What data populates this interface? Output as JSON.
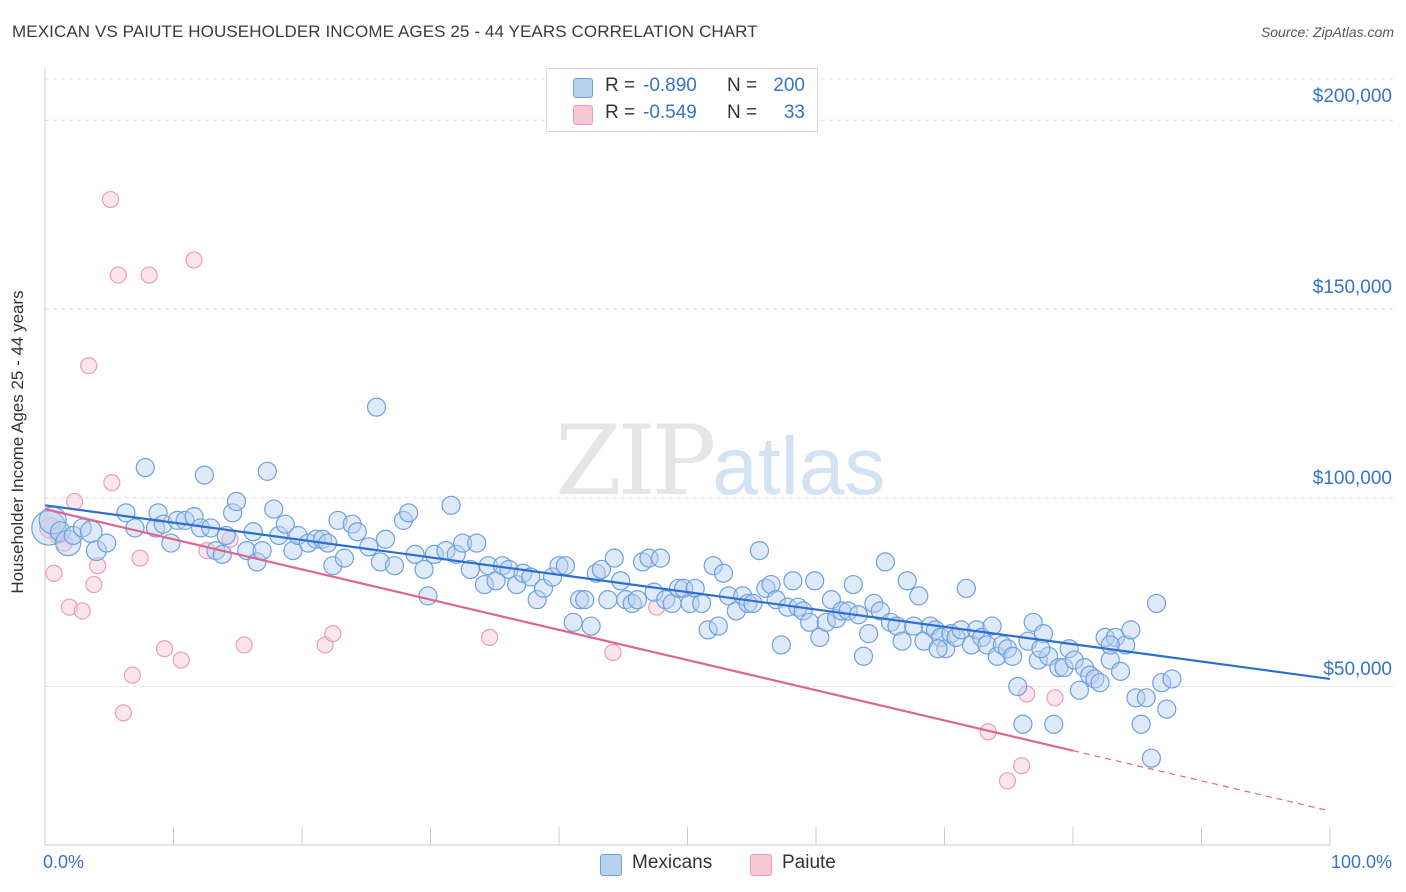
{
  "header": {
    "title": "MEXICAN VS PAIUTE HOUSEHOLDER INCOME AGES 25 - 44 YEARS CORRELATION CHART",
    "source": "Source: ZipAtlas.com"
  },
  "watermark": {
    "zip": "ZIP",
    "atlas": "atlas"
  },
  "legend": {
    "r_label": "R =",
    "n_label": "N =",
    "mexicans": {
      "r": "-0.890",
      "n": "200",
      "color": "#6fa1dd"
    },
    "paiute": {
      "r": "-0.549",
      "n": "33",
      "color": "#ef9cb7"
    }
  },
  "bottom_legend": {
    "mexicans": "Mexicans",
    "paiute": "Paiute"
  },
  "axes": {
    "ylabel": "Householder Income Ages 25 - 44 years",
    "x_min_label": "0.0%",
    "x_max_label": "100.0%",
    "y_ticks": [
      "$200,000",
      "$150,000",
      "$100,000",
      "$50,000"
    ]
  },
  "chart_data": {
    "type": "scatter",
    "title": "MEXICAN VS PAIUTE HOUSEHOLDER INCOME AGES 25 - 44 YEARS CORRELATION CHART",
    "xlabel": "",
    "ylabel": "Householder Income Ages 25 - 44 years",
    "xlim": [
      0,
      100
    ],
    "ylim": [
      8000,
      212000
    ],
    "y_ticks": [
      50000,
      100000,
      150000,
      200000
    ],
    "grid": true,
    "legend_position": "top-center",
    "series": [
      {
        "name": "Mexicans",
        "color": "#6fa1dd",
        "line_color": "#2b6fd1",
        "r": -0.89,
        "n": 200,
        "trend": {
          "x": [
            0,
            100
          ],
          "y": [
            98000,
            52000
          ]
        },
        "points": [
          [
            0.3,
            92000,
            1.9
          ],
          [
            0.6,
            94000,
            1.5
          ],
          [
            1.2,
            91000,
            1.1
          ],
          [
            1.8,
            88000,
            1.4
          ],
          [
            2.2,
            90000,
            1
          ],
          [
            2.9,
            92000,
            1
          ],
          [
            3.6,
            91000,
            1.2
          ],
          [
            4.0,
            86000,
            1.1
          ],
          [
            4.8,
            88000,
            1
          ],
          [
            6.3,
            96000,
            1
          ],
          [
            7.0,
            92000,
            1
          ],
          [
            7.8,
            108000,
            1
          ],
          [
            8.6,
            92000,
            1
          ],
          [
            8.8,
            96000,
            1
          ],
          [
            9.2,
            93000,
            1
          ],
          [
            9.8,
            88000,
            1
          ],
          [
            10.3,
            94000,
            1
          ],
          [
            10.9,
            94000,
            1
          ],
          [
            11.6,
            95000,
            1
          ],
          [
            12.1,
            92000,
            1
          ],
          [
            12.4,
            106000,
            1
          ],
          [
            12.9,
            92000,
            1
          ],
          [
            13.3,
            86000,
            1
          ],
          [
            13.8,
            85000,
            1
          ],
          [
            14.1,
            90000,
            1
          ],
          [
            14.6,
            96000,
            1
          ],
          [
            14.9,
            99000,
            1
          ],
          [
            15.7,
            86000,
            1
          ],
          [
            16.2,
            91000,
            1
          ],
          [
            16.5,
            83000,
            1
          ],
          [
            16.9,
            86000,
            1
          ],
          [
            17.3,
            107000,
            1
          ],
          [
            17.8,
            97000,
            1
          ],
          [
            18.2,
            90000,
            1
          ],
          [
            18.7,
            93000,
            1
          ],
          [
            19.3,
            86000,
            1
          ],
          [
            19.7,
            90000,
            1
          ],
          [
            20.5,
            88000,
            1
          ],
          [
            21.1,
            89000,
            1
          ],
          [
            21.6,
            89000,
            1
          ],
          [
            22.0,
            88000,
            1
          ],
          [
            22.4,
            82000,
            1
          ],
          [
            22.8,
            94000,
            1
          ],
          [
            23.3,
            84000,
            1
          ],
          [
            23.9,
            93000,
            1
          ],
          [
            24.3,
            91000,
            1
          ],
          [
            25.2,
            87000,
            1
          ],
          [
            25.8,
            124000,
            1
          ],
          [
            26.1,
            83000,
            1
          ],
          [
            26.5,
            89000,
            1
          ],
          [
            27.2,
            82000,
            1
          ],
          [
            27.9,
            94000,
            1
          ],
          [
            28.3,
            96000,
            1
          ],
          [
            28.8,
            85000,
            1
          ],
          [
            29.5,
            81000,
            1
          ],
          [
            29.8,
            74000,
            1
          ],
          [
            30.3,
            85000,
            1
          ],
          [
            31.2,
            86000,
            1
          ],
          [
            31.6,
            98000,
            1
          ],
          [
            32.0,
            85000,
            1
          ],
          [
            32.5,
            88000,
            1
          ],
          [
            33.1,
            81000,
            1
          ],
          [
            33.6,
            88000,
            1
          ],
          [
            34.2,
            77000,
            1
          ],
          [
            34.5,
            82000,
            1
          ],
          [
            35.1,
            78000,
            1
          ],
          [
            35.6,
            82000,
            1
          ],
          [
            36.1,
            81000,
            1
          ],
          [
            36.7,
            77000,
            1
          ],
          [
            37.2,
            80000,
            1
          ],
          [
            37.8,
            79000,
            1
          ],
          [
            38.3,
            73000,
            1
          ],
          [
            38.8,
            76000,
            1
          ],
          [
            39.5,
            79000,
            1
          ],
          [
            40.0,
            82000,
            1
          ],
          [
            40.5,
            82000,
            1
          ],
          [
            41.1,
            67000,
            1
          ],
          [
            41.6,
            73000,
            1
          ],
          [
            42.0,
            73000,
            1
          ],
          [
            42.5,
            66000,
            1
          ],
          [
            42.9,
            80000,
            1
          ],
          [
            43.3,
            81000,
            1
          ],
          [
            43.8,
            73000,
            1
          ],
          [
            44.3,
            84000,
            1
          ],
          [
            44.8,
            78000,
            1
          ],
          [
            45.2,
            73000,
            1
          ],
          [
            45.7,
            72000,
            1
          ],
          [
            46.1,
            73000,
            1
          ],
          [
            46.5,
            83000,
            1
          ],
          [
            47.0,
            84000,
            1
          ],
          [
            47.4,
            75000,
            1
          ],
          [
            47.9,
            84000,
            1
          ],
          [
            48.3,
            73000,
            1
          ],
          [
            48.8,
            72000,
            1
          ],
          [
            49.3,
            76000,
            1
          ],
          [
            49.7,
            76000,
            1
          ],
          [
            50.2,
            72000,
            1
          ],
          [
            50.6,
            76000,
            1
          ],
          [
            51.1,
            72000,
            1
          ],
          [
            51.6,
            65000,
            1
          ],
          [
            52.0,
            82000,
            1
          ],
          [
            52.4,
            66000,
            1
          ],
          [
            52.8,
            80000,
            1
          ],
          [
            53.2,
            74000,
            1
          ],
          [
            53.8,
            70000,
            1
          ],
          [
            54.3,
            74000,
            1
          ],
          [
            54.7,
            72000,
            1
          ],
          [
            55.1,
            72000,
            1
          ],
          [
            55.6,
            86000,
            1
          ],
          [
            56.1,
            76000,
            1
          ],
          [
            56.5,
            77000,
            1
          ],
          [
            56.9,
            73000,
            1
          ],
          [
            57.3,
            61000,
            1
          ],
          [
            57.8,
            71000,
            1
          ],
          [
            58.2,
            78000,
            1
          ],
          [
            58.6,
            71000,
            1
          ],
          [
            59.0,
            70000,
            1
          ],
          [
            59.5,
            67000,
            1
          ],
          [
            59.9,
            78000,
            1
          ],
          [
            60.3,
            63000,
            1
          ],
          [
            60.8,
            67000,
            1
          ],
          [
            61.2,
            73000,
            1
          ],
          [
            61.6,
            68000,
            1
          ],
          [
            62.0,
            70000,
            1
          ],
          [
            62.5,
            70000,
            1
          ],
          [
            62.9,
            77000,
            1
          ],
          [
            63.3,
            69000,
            1
          ],
          [
            63.7,
            58000,
            1
          ],
          [
            64.1,
            64000,
            1
          ],
          [
            64.5,
            72000,
            1
          ],
          [
            65.0,
            70000,
            1
          ],
          [
            65.4,
            83000,
            1
          ],
          [
            65.8,
            67000,
            1
          ],
          [
            66.3,
            66000,
            1
          ],
          [
            66.7,
            62000,
            1
          ],
          [
            67.1,
            78000,
            1
          ],
          [
            67.6,
            66000,
            1
          ],
          [
            68.0,
            74000,
            1
          ],
          [
            68.4,
            62000,
            1
          ],
          [
            68.9,
            66000,
            1
          ],
          [
            69.3,
            65000,
            1
          ],
          [
            69.7,
            63000,
            1
          ],
          [
            70.1,
            60000,
            1
          ],
          [
            70.5,
            64000,
            1
          ],
          [
            70.9,
            63000,
            1
          ],
          [
            71.3,
            65000,
            1
          ],
          [
            71.7,
            76000,
            1
          ],
          [
            72.1,
            61000,
            1
          ],
          [
            72.5,
            65000,
            1
          ],
          [
            72.9,
            63000,
            1
          ],
          [
            73.3,
            61000,
            1
          ],
          [
            73.7,
            66000,
            1
          ],
          [
            74.1,
            58000,
            1
          ],
          [
            74.5,
            61000,
            1
          ],
          [
            74.9,
            60000,
            1
          ],
          [
            75.3,
            58000,
            1
          ],
          [
            75.7,
            50000,
            1
          ],
          [
            76.1,
            40000,
            1
          ],
          [
            76.5,
            62000,
            1
          ],
          [
            76.9,
            67000,
            1
          ],
          [
            77.3,
            57000,
            1
          ],
          [
            77.7,
            64000,
            1
          ],
          [
            78.1,
            58000,
            1
          ],
          [
            78.5,
            40000,
            1
          ],
          [
            78.9,
            55000,
            1
          ],
          [
            79.3,
            55000,
            1
          ],
          [
            79.7,
            60000,
            1
          ],
          [
            80.1,
            57000,
            1
          ],
          [
            80.5,
            49000,
            1
          ],
          [
            80.9,
            55000,
            1
          ],
          [
            81.3,
            53000,
            1
          ],
          [
            81.7,
            52000,
            1
          ],
          [
            82.1,
            51000,
            1
          ],
          [
            82.5,
            63000,
            1
          ],
          [
            82.9,
            57000,
            1
          ],
          [
            83.3,
            63000,
            1
          ],
          [
            83.7,
            54000,
            1
          ],
          [
            84.1,
            61000,
            1
          ],
          [
            84.5,
            65000,
            1
          ],
          [
            84.9,
            47000,
            1
          ],
          [
            85.3,
            40000,
            1
          ],
          [
            85.7,
            47000,
            1
          ],
          [
            86.1,
            31000,
            1
          ],
          [
            86.5,
            72000,
            1
          ],
          [
            86.9,
            51000,
            1
          ],
          [
            87.3,
            44000,
            1
          ],
          [
            87.7,
            52000,
            1
          ],
          [
            82.9,
            61000,
            1
          ],
          [
            77.5,
            60000,
            1
          ],
          [
            69.5,
            60000,
            1
          ]
        ]
      },
      {
        "name": "Paiute",
        "color": "#ef9cb7",
        "line_color": "#e0648e",
        "r": -0.549,
        "n": 33,
        "trend": {
          "x": [
            0,
            80
          ],
          "y": [
            97000,
            33000
          ],
          "dashed_to": [
            100,
            17000
          ]
        },
        "points": [
          [
            0.4,
            92000,
            1.3
          ],
          [
            0.7,
            80000,
            1
          ],
          [
            1.0,
            90000,
            1
          ],
          [
            1.5,
            88000,
            1
          ],
          [
            1.9,
            71000,
            1
          ],
          [
            2.3,
            99000,
            1
          ],
          [
            2.9,
            70000,
            1
          ],
          [
            3.4,
            135000,
            1
          ],
          [
            3.8,
            77000,
            1
          ],
          [
            4.1,
            82000,
            1
          ],
          [
            5.1,
            179000,
            1
          ],
          [
            5.7,
            159000,
            1
          ],
          [
            6.1,
            43000,
            1
          ],
          [
            6.8,
            53000,
            1
          ],
          [
            7.4,
            84000,
            1
          ],
          [
            8.1,
            159000,
            1
          ],
          [
            9.3,
            60000,
            1
          ],
          [
            10.6,
            57000,
            1
          ],
          [
            11.6,
            163000,
            1
          ],
          [
            12.6,
            86000,
            1
          ],
          [
            14.4,
            89000,
            1
          ],
          [
            15.5,
            61000,
            1
          ],
          [
            21.8,
            61000,
            1
          ],
          [
            22.4,
            64000,
            1
          ],
          [
            34.6,
            63000,
            1
          ],
          [
            44.2,
            59000,
            1
          ],
          [
            47.6,
            71000,
            1
          ],
          [
            73.4,
            38000,
            1
          ],
          [
            74.9,
            25000,
            1
          ],
          [
            76.0,
            29000,
            1
          ],
          [
            76.4,
            48000,
            1
          ],
          [
            78.6,
            47000,
            1
          ],
          [
            5.2,
            104000,
            1
          ]
        ]
      }
    ]
  }
}
